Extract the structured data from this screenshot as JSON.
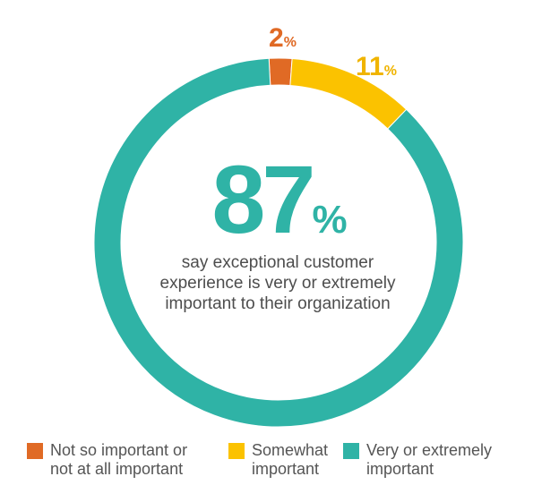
{
  "chart_data": {
    "type": "pie",
    "donut": true,
    "categories": [
      "Not so important or not at all important",
      "Somewhat important",
      "Very or extremely important"
    ],
    "values": [
      2,
      11,
      87
    ],
    "unit": "%",
    "colors": [
      "#e06a25",
      "#fbc200",
      "#2fb3a6"
    ],
    "center_value": "87",
    "center_unit": "%",
    "center_text": [
      "say exceptional customer",
      "experience is very or extremely",
      "important to their organization"
    ],
    "data_labels": [
      {
        "value": "2",
        "unit": "%"
      },
      {
        "value": "11",
        "unit": "%"
      }
    ],
    "legend": {
      "placement": "bottom",
      "items": [
        {
          "lines": [
            "Not so important or",
            "not at all important"
          ],
          "color": "#e06a25"
        },
        {
          "lines": [
            "Somewhat",
            "important"
          ],
          "color": "#fbc200"
        },
        {
          "lines": [
            "Very or extremely",
            "important"
          ],
          "color": "#2fb3a6"
        }
      ]
    }
  }
}
